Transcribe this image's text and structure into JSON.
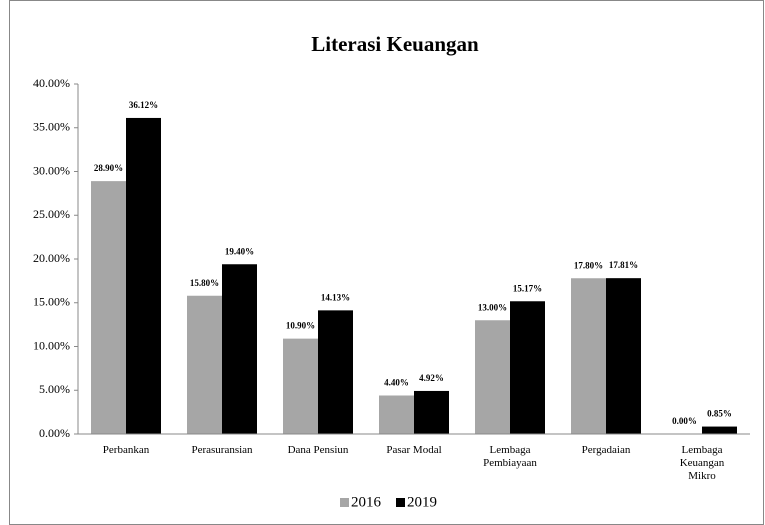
{
  "chart_data": {
    "type": "bar",
    "title": "Literasi Keuangan",
    "categories": [
      "Perbankan",
      "Perasuransian",
      "Dana Pensiun",
      "Pasar Modal",
      "Lembaga Pembiayaan",
      "Pergadaian",
      "Lembaga Keuangan Mikro"
    ],
    "series": [
      {
        "name": "2016",
        "color": "#a6a6a6",
        "values": [
          28.9,
          15.8,
          10.9,
          4.4,
          13.0,
          17.8,
          0.0
        ],
        "value_labels": [
          "28.90%",
          "15.80%",
          "10.90%",
          "4.40%",
          "13.00%",
          "17.80%",
          "0.00%"
        ]
      },
      {
        "name": "2019",
        "color": "#000000",
        "values": [
          36.12,
          19.4,
          14.13,
          4.92,
          15.17,
          17.81,
          0.85
        ],
        "value_labels": [
          "36.12%",
          "19.40%",
          "14.13%",
          "4.92%",
          "15.17%",
          "17.81%",
          "0.85%"
        ]
      }
    ],
    "ylim": [
      0,
      40
    ],
    "yticks": [
      {
        "value": 0,
        "label": "0.00%"
      },
      {
        "value": 5,
        "label": "5.00%"
      },
      {
        "value": 10,
        "label": "10.00%"
      },
      {
        "value": 15,
        "label": "15.00%"
      },
      {
        "value": 20,
        "label": "20.00%"
      },
      {
        "value": 25,
        "label": "25.00%"
      },
      {
        "value": 30,
        "label": "30.00%"
      },
      {
        "value": 35,
        "label": "35.00%"
      },
      {
        "value": 40,
        "label": "40.00%"
      }
    ],
    "legend": "bottom"
  }
}
